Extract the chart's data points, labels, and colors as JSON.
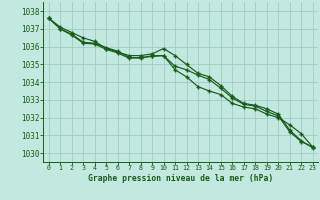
{
  "title": "Graphe pression niveau de la mer (hPa)",
  "bg_color": "#c2e8e0",
  "grid_color": "#a0ccc4",
  "line_color": "#1a5c1a",
  "x_ticks": [
    0,
    1,
    2,
    3,
    4,
    5,
    6,
    7,
    8,
    9,
    10,
    11,
    12,
    13,
    14,
    15,
    16,
    17,
    18,
    19,
    20,
    21,
    22,
    23
  ],
  "ylim": [
    1029.5,
    1038.5
  ],
  "xlim": [
    -0.5,
    23.5
  ],
  "yticks": [
    1030,
    1031,
    1032,
    1033,
    1034,
    1035,
    1036,
    1037,
    1038
  ],
  "line1": [
    1037.6,
    1037.1,
    1036.8,
    1036.5,
    1036.3,
    1035.9,
    1035.7,
    1035.5,
    1035.5,
    1035.6,
    1035.9,
    1035.5,
    1035.0,
    1034.5,
    1034.3,
    1033.8,
    1033.2,
    1032.8,
    1032.7,
    1032.5,
    1032.2,
    1031.3,
    1030.7,
    1030.3
  ],
  "line2": [
    1037.6,
    1037.0,
    1036.65,
    1036.2,
    1036.15,
    1035.85,
    1035.65,
    1035.35,
    1035.4,
    1035.45,
    1035.5,
    1034.7,
    1034.3,
    1033.75,
    1033.5,
    1033.3,
    1032.8,
    1032.6,
    1032.5,
    1032.2,
    1032.0,
    1031.6,
    1031.1,
    1030.35
  ],
  "line3": [
    1037.6,
    1037.0,
    1036.7,
    1036.25,
    1036.2,
    1035.95,
    1035.75,
    1035.4,
    1035.35,
    1035.5,
    1035.5,
    1034.9,
    1034.7,
    1034.4,
    1034.15,
    1033.65,
    1033.1,
    1032.75,
    1032.65,
    1032.35,
    1032.1,
    1031.2,
    1030.65,
    1030.35
  ]
}
